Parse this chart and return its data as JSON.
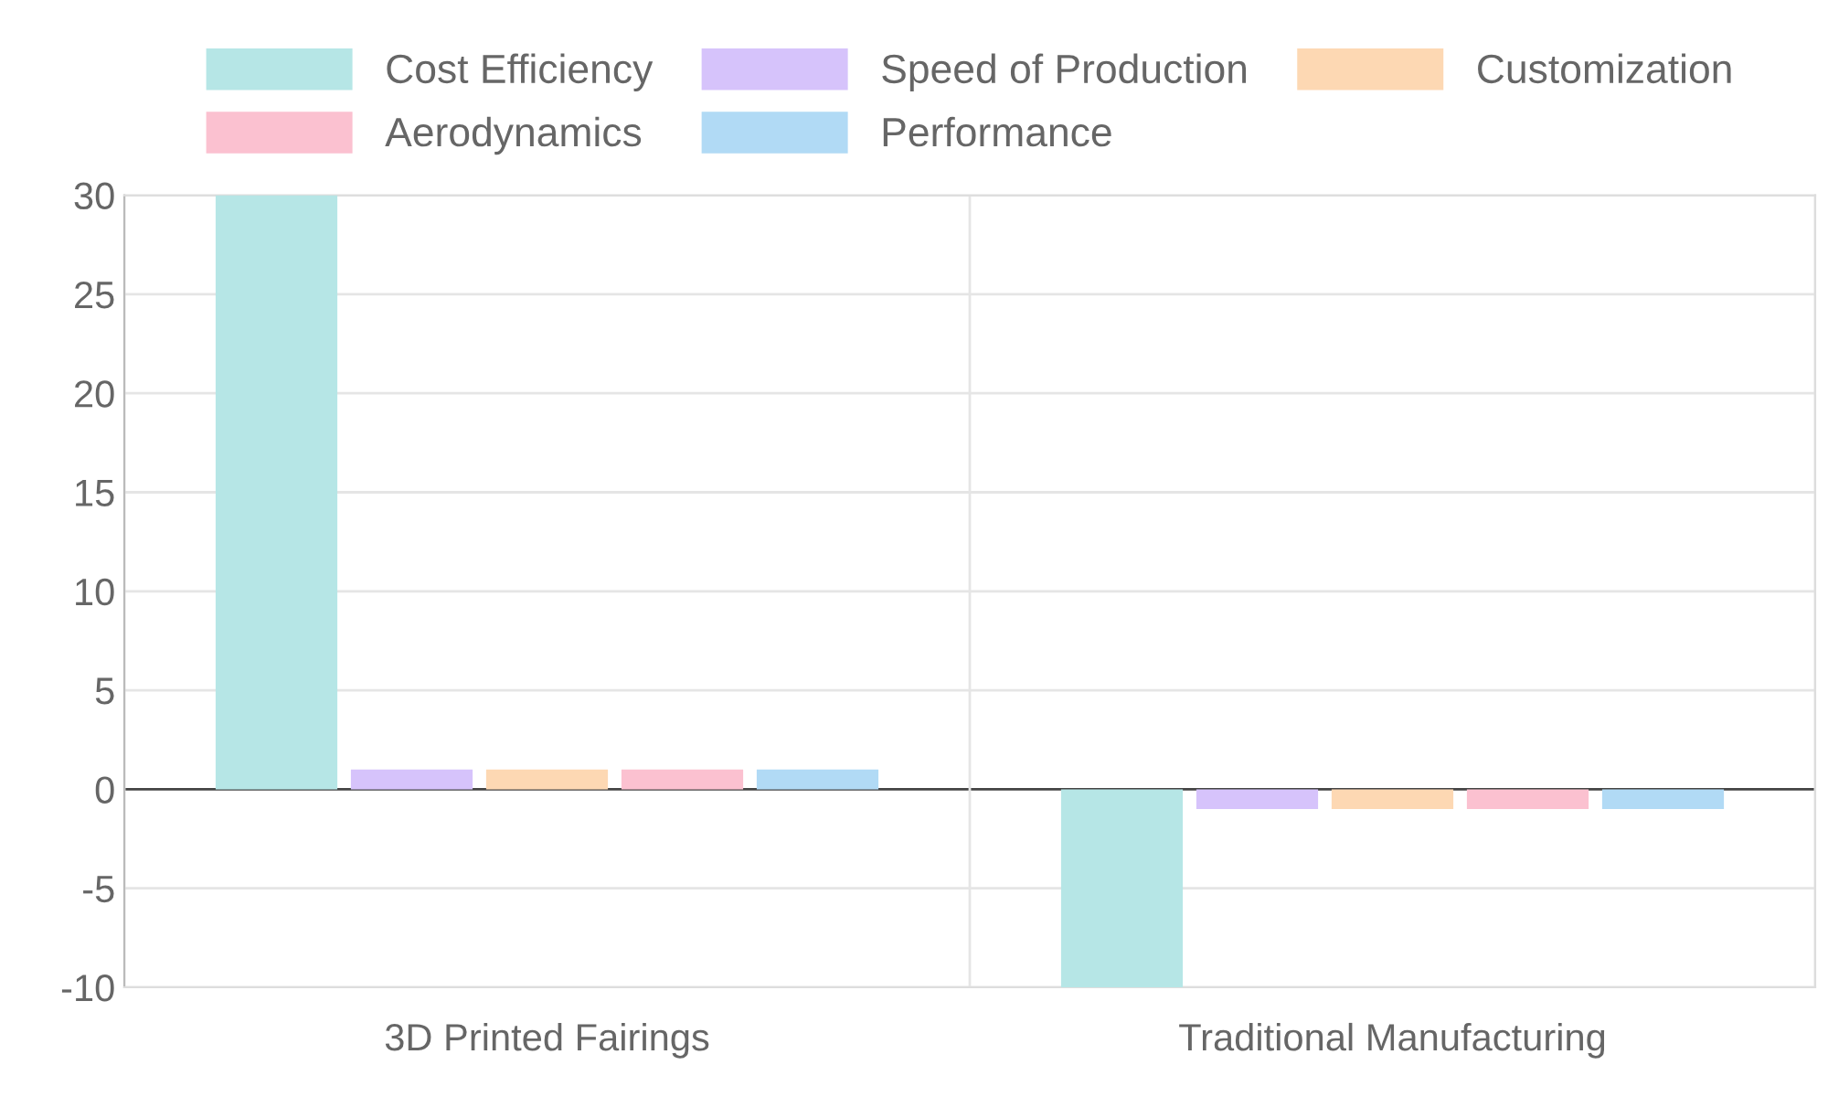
{
  "chart_data": {
    "type": "bar",
    "categories": [
      "3D Printed Fairings",
      "Traditional Manufacturing"
    ],
    "series": [
      {
        "name": "Cost Efficiency",
        "color": "#b6e6e6",
        "values": [
          30,
          -10
        ]
      },
      {
        "name": "Speed of Production",
        "color": "#d6c3fb",
        "values": [
          1,
          -1
        ]
      },
      {
        "name": "Customization",
        "color": "#fdd8b3",
        "values": [
          1,
          -1
        ]
      },
      {
        "name": "Aerodynamics",
        "color": "#fbc1d0",
        "values": [
          1,
          -1
        ]
      },
      {
        "name": "Performance",
        "color": "#b1daf5",
        "values": [
          1,
          -1
        ]
      }
    ],
    "ylim": [
      -10,
      30
    ],
    "yticks": [
      -10,
      -5,
      0,
      5,
      10,
      15,
      20,
      25,
      30
    ],
    "grid": true,
    "legend": "top"
  }
}
